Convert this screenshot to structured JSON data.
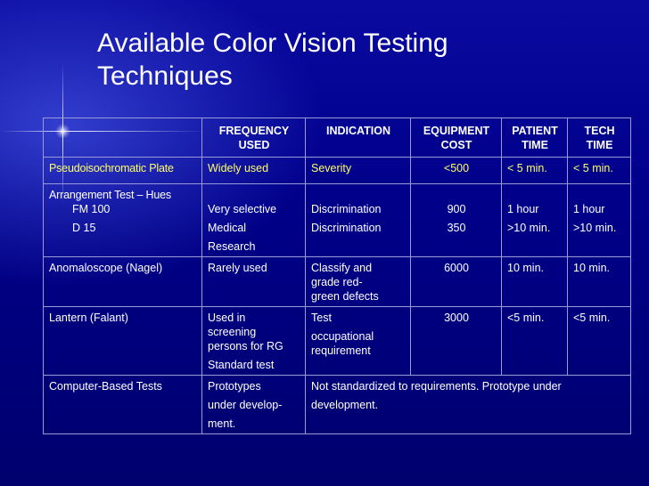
{
  "slide": {
    "title_line1": "Available Color Vision Testing",
    "title_line2": "Techniques"
  },
  "table": {
    "headers": {
      "frequency": [
        "FREQUENCY",
        "USED"
      ],
      "indication": "INDICATION",
      "equipment": [
        "EQUIPMENT",
        "COST"
      ],
      "patient": [
        "PATIENT",
        "TIME"
      ],
      "tech": [
        "TECH",
        "TIME"
      ]
    },
    "rows": {
      "pseudo": {
        "name": "Pseudoisochromatic Plate",
        "frequency": "Widely used",
        "indication": "Severity",
        "cost": "<500",
        "patient": "< 5 min.",
        "tech": "< 5 min."
      },
      "arrangement": {
        "name": "Arrangement Test – Hues",
        "sub1": "FM 100",
        "sub2": "D 15",
        "freq1": "Very selective",
        "freq2": "Medical",
        "freq3": "Research",
        "ind1": "Discrimination",
        "ind2": "Discrimination",
        "cost1": "900",
        "cost2": "350",
        "patient1": "1 hour",
        "patient2": ">10 min.",
        "tech1": "1 hour",
        "tech2": ">10 min."
      },
      "anomaloscope": {
        "name": "Anomaloscope (Nagel)",
        "frequency": "Rarely used",
        "ind1": "Classify and",
        "ind2": "grade red-",
        "ind3": "green defects",
        "cost": "6000",
        "patient": "10 min.",
        "tech": "10 min."
      },
      "lantern": {
        "name": "Lantern (Falant)",
        "freq1": "Used in",
        "freq2": "screening",
        "freq3": "persons for RG",
        "freq4": "Standard test",
        "ind1": "Test",
        "ind2": "occupational",
        "ind3": "requirement",
        "cost": "3000",
        "patient": "<5 min.",
        "tech": "<5 min."
      },
      "computer": {
        "name": "Computer-Based Tests",
        "freq1": "Prototypes",
        "freq2": "under develop-",
        "freq3": "ment.",
        "note1": "Not standardized to requirements.  Prototype under",
        "note2": "development."
      }
    }
  },
  "colors": {
    "background": "#00008a",
    "highlight_row": "#ffff66",
    "text": "#ffffff",
    "grid": "#9a9ad8"
  }
}
